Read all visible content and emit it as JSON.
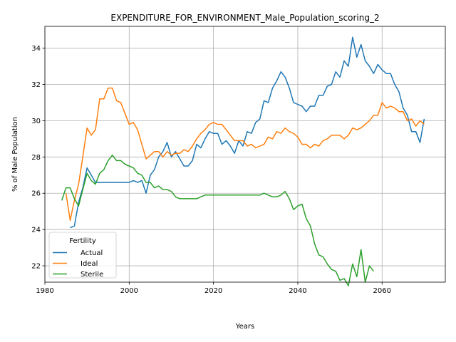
{
  "chart_data": {
    "type": "line",
    "title": "EXPENDITURE_FOR_ENVIRONMENT_Male_Population_scoring_2",
    "xlabel": "Years",
    "ylabel": "% of Male Population",
    "xlim": [
      1980,
      2075
    ],
    "ylim": [
      21.1,
      35.2
    ],
    "xticks": [
      1980,
      2000,
      2020,
      2040,
      2060
    ],
    "yticks": [
      22,
      24,
      26,
      28,
      30,
      32,
      34
    ],
    "grid": true,
    "legend": {
      "title": "Fertility",
      "placement": "lower-left"
    },
    "series": [
      {
        "name": "Actual",
        "color": "#1f77b4",
        "x": [
          1986,
          1987,
          1988,
          1989,
          1990,
          1991,
          1992,
          1993,
          1994,
          1995,
          1996,
          1997,
          1998,
          1999,
          2000,
          2001,
          2002,
          2003,
          2004,
          2005,
          2006,
          2007,
          2008,
          2009,
          2010,
          2011,
          2012,
          2013,
          2014,
          2015,
          2016,
          2017,
          2018,
          2019,
          2020,
          2021,
          2022,
          2023,
          2024,
          2025,
          2026,
          2027,
          2028,
          2029,
          2030,
          2031,
          2032,
          2033,
          2034,
          2035,
          2036,
          2037,
          2038,
          2039,
          2040,
          2041,
          2042,
          2043,
          2044,
          2045,
          2046,
          2047,
          2048,
          2049,
          2050,
          2051,
          2052,
          2053,
          2054,
          2055,
          2056,
          2057,
          2058,
          2059,
          2060,
          2061,
          2062,
          2063,
          2064,
          2065,
          2066,
          2067,
          2068,
          2069,
          2070
        ],
        "y": [
          24.1,
          24.2,
          25.5,
          26.3,
          27.4,
          27.0,
          26.6,
          26.6,
          26.6,
          26.6,
          26.6,
          26.6,
          26.6,
          26.6,
          26.6,
          26.7,
          26.6,
          26.7,
          26.0,
          27.0,
          27.3,
          28.0,
          28.3,
          28.8,
          28.0,
          28.3,
          27.9,
          27.5,
          27.5,
          27.8,
          28.7,
          28.5,
          29.0,
          29.4,
          29.3,
          29.3,
          28.7,
          28.9,
          28.6,
          28.2,
          28.9,
          28.6,
          29.4,
          29.3,
          29.9,
          30.1,
          31.1,
          31.0,
          31.8,
          32.2,
          32.7,
          32.4,
          31.8,
          31.0,
          30.9,
          30.8,
          30.5,
          30.8,
          30.8,
          31.4,
          31.4,
          31.9,
          32.0,
          32.7,
          32.4,
          33.3,
          33.0,
          34.6,
          33.5,
          34.2,
          33.3,
          33.0,
          32.6,
          33.1,
          32.8,
          32.6,
          32.6,
          32.0,
          31.6,
          30.7,
          30.3,
          29.4,
          29.4,
          28.8,
          30.1
        ]
      },
      {
        "name": "Ideal",
        "color": "#ff7f0e",
        "x": [
          1985,
          1986,
          1987,
          1988,
          1989,
          1990,
          1991,
          1992,
          1993,
          1994,
          1995,
          1996,
          1997,
          1998,
          1999,
          2000,
          2001,
          2002,
          2003,
          2004,
          2005,
          2006,
          2007,
          2008,
          2009,
          2010,
          2011,
          2012,
          2013,
          2014,
          2015,
          2016,
          2017,
          2018,
          2019,
          2020,
          2021,
          2022,
          2023,
          2024,
          2025,
          2026,
          2027,
          2028,
          2029,
          2030,
          2031,
          2032,
          2033,
          2034,
          2035,
          2036,
          2037,
          2038,
          2039,
          2040,
          2041,
          2042,
          2043,
          2044,
          2045,
          2046,
          2047,
          2048,
          2049,
          2050,
          2051,
          2052,
          2053,
          2054,
          2055,
          2056,
          2057,
          2058,
          2059,
          2060,
          2061,
          2062,
          2063,
          2064,
          2065,
          2066,
          2067,
          2068,
          2069,
          2070
        ],
        "y": [
          26.0,
          24.5,
          25.6,
          26.5,
          28.0,
          29.6,
          29.2,
          29.5,
          31.2,
          31.2,
          31.8,
          31.8,
          31.1,
          31.0,
          30.4,
          29.8,
          29.9,
          29.5,
          28.7,
          27.9,
          28.1,
          28.3,
          28.3,
          28.0,
          28.3,
          28.1,
          28.2,
          28.2,
          28.4,
          28.3,
          28.6,
          29.0,
          29.3,
          29.5,
          29.8,
          29.9,
          29.8,
          29.8,
          29.5,
          29.2,
          28.9,
          28.9,
          28.9,
          28.6,
          28.7,
          28.5,
          28.6,
          28.7,
          29.1,
          29.0,
          29.4,
          29.3,
          29.6,
          29.4,
          29.3,
          29.1,
          28.7,
          28.7,
          28.5,
          28.7,
          28.6,
          28.9,
          29.0,
          29.2,
          29.2,
          29.2,
          29.0,
          29.2,
          29.6,
          29.5,
          29.6,
          29.8,
          30.0,
          30.3,
          30.3,
          31.0,
          30.7,
          30.8,
          30.7,
          30.5,
          30.5,
          30.0,
          30.1,
          29.7,
          30.0,
          29.8
        ]
      },
      {
        "name": "Sterile",
        "color": "#2ca02c",
        "x": [
          1984,
          1985,
          1986,
          1987,
          1988,
          1989,
          1990,
          1991,
          1992,
          1993,
          1994,
          1995,
          1996,
          1997,
          1998,
          1999,
          2000,
          2001,
          2002,
          2003,
          2004,
          2005,
          2006,
          2007,
          2008,
          2009,
          2010,
          2011,
          2012,
          2013,
          2014,
          2015,
          2016,
          2017,
          2018,
          2019,
          2020,
          2021,
          2022,
          2023,
          2024,
          2025,
          2026,
          2027,
          2028,
          2029,
          2030,
          2031,
          2032,
          2033,
          2034,
          2035,
          2036,
          2037,
          2038,
          2039,
          2040,
          2041,
          2042,
          2043,
          2044,
          2045,
          2046,
          2047,
          2048,
          2049,
          2050,
          2051,
          2052,
          2053,
          2054,
          2055,
          2056,
          2057,
          2058
        ],
        "y": [
          25.6,
          26.3,
          26.3,
          25.7,
          25.3,
          26.2,
          27.1,
          26.7,
          26.5,
          27.1,
          27.3,
          27.8,
          28.1,
          27.8,
          27.8,
          27.6,
          27.5,
          27.4,
          27.1,
          27.0,
          26.6,
          26.6,
          26.3,
          26.4,
          26.2,
          26.2,
          26.1,
          25.8,
          25.7,
          25.7,
          25.7,
          25.7,
          25.7,
          25.8,
          25.9,
          25.9,
          25.9,
          25.9,
          25.9,
          25.9,
          25.9,
          25.9,
          25.9,
          25.9,
          25.9,
          25.9,
          25.9,
          25.9,
          26.0,
          25.9,
          25.8,
          25.8,
          25.9,
          26.1,
          25.7,
          25.1,
          25.3,
          25.4,
          24.6,
          24.2,
          23.2,
          22.6,
          22.5,
          22.1,
          21.8,
          21.7,
          21.2,
          21.3,
          20.9,
          22.1,
          21.4,
          22.9,
          21.1,
          22.0,
          21.7
        ]
      }
    ]
  }
}
